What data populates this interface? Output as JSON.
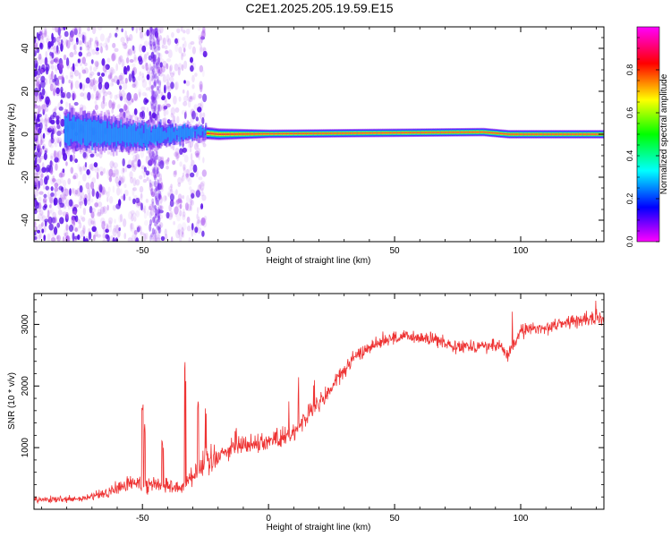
{
  "title": "C2E1.2025.205.19.59.E15",
  "colors": {
    "line": "#ee3333",
    "spectrum": "#6a11ee",
    "axes": "#000000"
  },
  "chart_data": [
    {
      "type": "heatmap",
      "xlabel": "Height of straight line (km)",
      "ylabel": "Frequency (Hz)",
      "xlim": [
        -93,
        133
      ],
      "ylim": [
        -50,
        50
      ],
      "xticks": [
        -50,
        0,
        50,
        100
      ],
      "yticks": [
        -40,
        -20,
        0,
        20,
        40
      ],
      "colorbar": {
        "label": "Normalized spectral amplitude",
        "range": [
          0,
          1
        ],
        "ticks": [
          "0.0",
          "0.2",
          "0.4",
          "0.6",
          "0.8"
        ],
        "colormap": [
          "#ff00ff",
          "#0000ff",
          "#00ffff",
          "#00ff00",
          "#ffff00",
          "#ff0000",
          "#ff00ff"
        ]
      },
      "band": {
        "center_hz": [
          {
            "x": -80,
            "y": 2
          },
          {
            "x": -50,
            "y": -1
          },
          {
            "x": -30,
            "y": 1
          },
          {
            "x": -20,
            "y": 0
          },
          {
            "x": 85,
            "y": 1
          },
          {
            "x": 95,
            "y": 0
          },
          {
            "x": 133,
            "y": 0
          }
        ],
        "halfwidth_hz": [
          {
            "x": -80,
            "y": 10
          },
          {
            "x": -50,
            "y": 7
          },
          {
            "x": -25,
            "y": 3
          },
          {
            "x": 0,
            "y": 2
          },
          {
            "x": 133,
            "y": 2
          }
        ]
      },
      "noise_region": {
        "x_start": -93,
        "x_end": -25
      }
    },
    {
      "type": "line",
      "xlabel": "Height of straight line (km)",
      "ylabel": "SNR (10 * v/v)",
      "xlim": [
        -93,
        133
      ],
      "ylim": [
        0,
        3500
      ],
      "xticks": [
        -50,
        0,
        50,
        100
      ],
      "yticks": [
        1000,
        2000,
        3000
      ],
      "series": [
        {
          "trend": [
            {
              "x": -93,
              "y": 150
            },
            {
              "x": -75,
              "y": 160
            },
            {
              "x": -65,
              "y": 250
            },
            {
              "x": -55,
              "y": 420
            },
            {
              "x": -45,
              "y": 420
            },
            {
              "x": -35,
              "y": 350
            },
            {
              "x": -28,
              "y": 650
            },
            {
              "x": -20,
              "y": 900
            },
            {
              "x": -10,
              "y": 1050
            },
            {
              "x": 0,
              "y": 1100
            },
            {
              "x": 10,
              "y": 1250
            },
            {
              "x": 15,
              "y": 1500
            },
            {
              "x": 22,
              "y": 1800
            },
            {
              "x": 28,
              "y": 2150
            },
            {
              "x": 35,
              "y": 2500
            },
            {
              "x": 45,
              "y": 2750
            },
            {
              "x": 55,
              "y": 2800
            },
            {
              "x": 65,
              "y": 2750
            },
            {
              "x": 75,
              "y": 2650
            },
            {
              "x": 85,
              "y": 2650
            },
            {
              "x": 92,
              "y": 2650
            },
            {
              "x": 95,
              "y": 2500
            },
            {
              "x": 100,
              "y": 2900
            },
            {
              "x": 110,
              "y": 2950
            },
            {
              "x": 120,
              "y": 3050
            },
            {
              "x": 133,
              "y": 3100
            }
          ],
          "spikes": [
            {
              "x": -50,
              "y": 1750
            },
            {
              "x": -49,
              "y": 1450
            },
            {
              "x": -42,
              "y": 1150
            },
            {
              "x": -33,
              "y": 2400
            },
            {
              "x": -28,
              "y": 1900
            },
            {
              "x": -25,
              "y": 1800
            },
            {
              "x": -13,
              "y": 1450
            },
            {
              "x": 8,
              "y": 1950
            },
            {
              "x": 12,
              "y": 2150
            },
            {
              "x": 18,
              "y": 2200
            },
            {
              "x": 45,
              "y": 3000
            },
            {
              "x": 63,
              "y": 3100
            },
            {
              "x": 97,
              "y": 3350
            },
            {
              "x": 130,
              "y": 3450
            }
          ]
        }
      ]
    }
  ]
}
